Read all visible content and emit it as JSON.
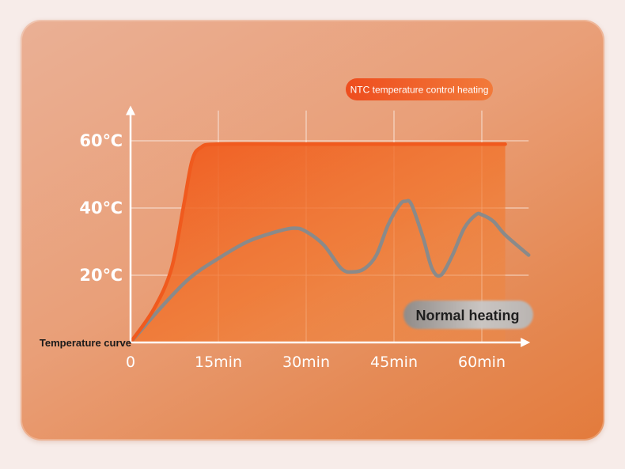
{
  "chart_data": {
    "type": "line",
    "title": "",
    "xlabel": "Temperature curve",
    "ylabel": "",
    "x_ticks": [
      "0",
      "15min",
      "30min",
      "45min",
      "60min"
    ],
    "y_ticks": [
      "20℃",
      "40℃",
      "60℃"
    ],
    "xlim": [
      0,
      68
    ],
    "ylim": [
      0,
      70
    ],
    "grid": true,
    "series": [
      {
        "name": "NTC temperature control heating",
        "color": "#f05a1e",
        "x": [
          0,
          4,
          7,
          9,
          10.5,
          12,
          15,
          30,
          45,
          60,
          64
        ],
        "y": [
          0,
          10,
          22,
          40,
          54,
          58,
          59,
          59,
          59,
          59,
          59
        ]
      },
      {
        "name": "Normal heating",
        "color": "#8a8a8a",
        "x": [
          0,
          5,
          10,
          15,
          20,
          25,
          28,
          30,
          33,
          36,
          38,
          40,
          42,
          44,
          46,
          47,
          48,
          50,
          51.5,
          53,
          55,
          57,
          59,
          60,
          62,
          64,
          68
        ],
        "y": [
          0,
          10,
          19,
          25,
          30,
          33,
          34,
          33,
          29,
          22,
          21,
          22,
          26,
          35,
          41,
          42,
          41,
          31,
          22,
          20,
          26,
          34,
          38,
          38,
          36,
          32,
          26
        ]
      }
    ]
  }
}
